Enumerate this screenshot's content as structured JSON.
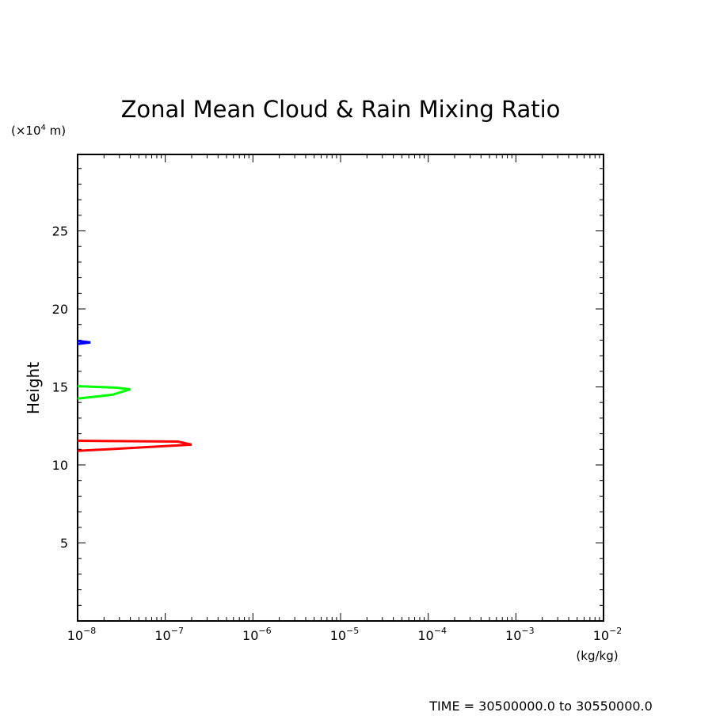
{
  "chart_data": {
    "type": "line",
    "title": "Zonal Mean Cloud & Rain Mixing Ratio",
    "ylabel": "Height",
    "yunit": "(×10",
    "yunit_exp": "4",
    "yunit_tail": " m)",
    "xunit": "(kg/kg)",
    "xscale": "log",
    "xlim": [
      1e-08,
      0.01
    ],
    "ylim": [
      0,
      29.9
    ],
    "x_ticks": [
      {
        "base": "10",
        "exp": "−8"
      },
      {
        "base": "10",
        "exp": "−7"
      },
      {
        "base": "10",
        "exp": "−6"
      },
      {
        "base": "10",
        "exp": "−5"
      },
      {
        "base": "10",
        "exp": "−4"
      },
      {
        "base": "10",
        "exp": "−3"
      },
      {
        "base": "10",
        "exp": "−2"
      }
    ],
    "y_ticks": [
      "5",
      "10",
      "15",
      "20",
      "25"
    ],
    "series": [
      {
        "color": "#ff0000",
        "x": [
          1e-08,
          1.4e-07,
          2e-07,
          1e-08
        ],
        "y": [
          11.55,
          11.5,
          11.3,
          10.9
        ]
      },
      {
        "color": "#00ff00",
        "x": [
          1e-08,
          2.8e-08,
          4e-08,
          2.5e-08,
          1e-08
        ],
        "y": [
          15.05,
          14.95,
          14.85,
          14.5,
          14.25
        ]
      },
      {
        "color": "#0000ff",
        "x": [
          1e-08,
          1.4e-08,
          1e-08
        ],
        "y": [
          17.95,
          17.85,
          17.75
        ]
      }
    ],
    "footer": "TIME = 30500000.0 to 30550000.0"
  }
}
